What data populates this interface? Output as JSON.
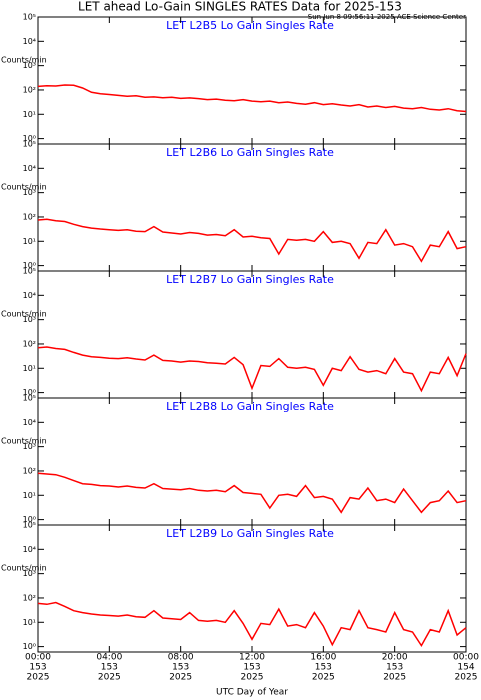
{
  "title": "LET ahead Lo-Gain SINGLES RATES Data for 2025-153",
  "timestamp": "Sun Jun  8 09:56:11 2025 ACE Science Center",
  "xlabel": "UTC Day of Year",
  "chart_data": [
    {
      "type": "line",
      "title": "LET L2B5 Lo Gain Singles Rate",
      "ylabel": "Counts/min",
      "color": "#ff0000",
      "log_y": true,
      "x": [
        0,
        0.5,
        1,
        1.5,
        2,
        2.5,
        3,
        3.5,
        4,
        4.5,
        5,
        5.5,
        6,
        6.5,
        7,
        7.5,
        8,
        8.5,
        9,
        9.5,
        10,
        10.5,
        11,
        11.5,
        12,
        12.5,
        13,
        13.5,
        14,
        14.5,
        15,
        15.5,
        16,
        16.5,
        17,
        17.5,
        18,
        18.5,
        19,
        19.5,
        20,
        20.5,
        21,
        21.5,
        22,
        22.5,
        23,
        23.5,
        24
      ],
      "values": [
        140,
        150,
        145,
        160,
        155,
        120,
        80,
        70,
        65,
        60,
        55,
        58,
        50,
        52,
        48,
        50,
        45,
        47,
        44,
        40,
        42,
        38,
        36,
        40,
        35,
        33,
        35,
        30,
        32,
        28,
        26,
        30,
        25,
        27,
        24,
        22,
        25,
        20,
        22,
        19,
        21,
        18,
        17,
        19,
        16,
        15,
        17,
        14,
        13
      ],
      "xlim": [
        0,
        24
      ],
      "xticks": [
        0,
        4,
        8,
        12,
        16,
        20,
        24
      ],
      "ylim": [
        0.6,
        100000
      ],
      "yticks": [
        {
          "value": 1,
          "label": "10⁰"
        },
        {
          "value": 10,
          "label": "10¹"
        },
        {
          "value": 100,
          "label": "10²"
        },
        {
          "value": 1000,
          "label": "10³"
        },
        {
          "value": 10000,
          "label": "10⁴"
        },
        {
          "value": 100000,
          "label": "10⁵"
        }
      ]
    },
    {
      "type": "line",
      "title": "LET L2B6 Lo Gain Singles Rate",
      "ylabel": "Counts/min",
      "color": "#ff0000",
      "log_y": true,
      "x": [
        0,
        0.5,
        1,
        1.5,
        2,
        2.5,
        3,
        3.5,
        4,
        4.5,
        5,
        5.5,
        6,
        6.5,
        7,
        7.5,
        8,
        8.5,
        9,
        9.5,
        10,
        10.5,
        11,
        11.5,
        12,
        12.5,
        13,
        13.5,
        14,
        14.5,
        15,
        15.5,
        16,
        16.5,
        17,
        17.5,
        18,
        18.5,
        19,
        19.5,
        20,
        20.5,
        21,
        21.5,
        22,
        22.5,
        23,
        23.5,
        24
      ],
      "values": [
        75,
        80,
        70,
        65,
        50,
        40,
        35,
        32,
        30,
        28,
        30,
        26,
        25,
        40,
        24,
        22,
        20,
        23,
        21,
        18,
        19,
        17,
        30,
        15,
        16,
        14,
        13,
        3,
        12,
        11,
        12,
        10,
        25,
        9,
        10,
        8,
        2,
        9,
        8,
        30,
        7,
        8,
        6,
        1.5,
        7,
        6,
        25,
        5,
        6
      ],
      "xlim": [
        0,
        24
      ],
      "xticks": [
        0,
        4,
        8,
        12,
        16,
        20,
        24
      ],
      "ylim": [
        0.6,
        100000
      ],
      "yticks": [
        {
          "value": 1,
          "label": "10⁰"
        },
        {
          "value": 10,
          "label": "10¹"
        },
        {
          "value": 100,
          "label": "10²"
        },
        {
          "value": 1000,
          "label": "10³"
        },
        {
          "value": 10000,
          "label": "10⁴"
        },
        {
          "value": 100000,
          "label": "10⁵"
        }
      ]
    },
    {
      "type": "line",
      "title": "LET L2B7 Lo Gain Singles Rate",
      "ylabel": "Counts/min",
      "color": "#ff0000",
      "log_y": true,
      "x": [
        0,
        0.5,
        1,
        1.5,
        2,
        2.5,
        3,
        3.5,
        4,
        4.5,
        5,
        5.5,
        6,
        6.5,
        7,
        7.5,
        8,
        8.5,
        9,
        9.5,
        10,
        10.5,
        11,
        11.5,
        12,
        12.5,
        13,
        13.5,
        14,
        14.5,
        15,
        15.5,
        16,
        16.5,
        17,
        17.5,
        18,
        18.5,
        19,
        19.5,
        20,
        20.5,
        21,
        21.5,
        22,
        22.5,
        23,
        23.5,
        24
      ],
      "values": [
        70,
        75,
        65,
        60,
        45,
        35,
        30,
        28,
        26,
        25,
        27,
        24,
        22,
        35,
        21,
        20,
        18,
        20,
        19,
        17,
        16,
        15,
        28,
        14,
        1.5,
        13,
        12,
        25,
        11,
        10,
        11,
        9,
        2,
        10,
        8,
        30,
        9,
        7,
        8,
        6,
        25,
        7,
        6,
        1.2,
        7,
        6,
        28,
        5,
        40
      ],
      "xlim": [
        0,
        24
      ],
      "xticks": [
        0,
        4,
        8,
        12,
        16,
        20,
        24
      ],
      "ylim": [
        0.6,
        100000
      ],
      "yticks": [
        {
          "value": 1,
          "label": "10⁰"
        },
        {
          "value": 10,
          "label": "10¹"
        },
        {
          "value": 100,
          "label": "10²"
        },
        {
          "value": 1000,
          "label": "10³"
        },
        {
          "value": 10000,
          "label": "10⁴"
        },
        {
          "value": 100000,
          "label": "10⁵"
        }
      ]
    },
    {
      "type": "line",
      "title": "LET L2B8 Lo Gain Singles Rate",
      "ylabel": "Counts/min",
      "color": "#ff0000",
      "log_y": true,
      "x": [
        0,
        0.5,
        1,
        1.5,
        2,
        2.5,
        3,
        3.5,
        4,
        4.5,
        5,
        5.5,
        6,
        6.5,
        7,
        7.5,
        8,
        8.5,
        9,
        9.5,
        10,
        10.5,
        11,
        11.5,
        12,
        12.5,
        13,
        13.5,
        14,
        14.5,
        15,
        15.5,
        16,
        16.5,
        17,
        17.5,
        18,
        18.5,
        19,
        19.5,
        20,
        20.5,
        21,
        21.5,
        22,
        22.5,
        23,
        23.5,
        24
      ],
      "values": [
        80,
        75,
        70,
        55,
        40,
        30,
        28,
        25,
        24,
        22,
        24,
        21,
        20,
        30,
        19,
        18,
        17,
        19,
        16,
        15,
        16,
        14,
        25,
        13,
        12,
        11,
        3,
        10,
        11,
        9,
        25,
        8,
        9,
        7,
        2,
        8,
        7,
        20,
        6,
        7,
        5,
        18,
        6,
        2,
        5,
        6,
        15,
        5,
        6
      ],
      "xlim": [
        0,
        24
      ],
      "xticks": [
        0,
        4,
        8,
        12,
        16,
        20,
        24
      ],
      "ylim": [
        0.6,
        100000
      ],
      "yticks": [
        {
          "value": 1,
          "label": "10⁰"
        },
        {
          "value": 10,
          "label": "10¹"
        },
        {
          "value": 100,
          "label": "10²"
        },
        {
          "value": 1000,
          "label": "10³"
        },
        {
          "value": 10000,
          "label": "10⁴"
        },
        {
          "value": 100000,
          "label": "10⁵"
        }
      ]
    },
    {
      "type": "line",
      "title": "LET L2B9 Lo Gain Singles Rate",
      "ylabel": "Counts/min",
      "color": "#ff0000",
      "log_y": true,
      "x": [
        0,
        0.5,
        1,
        1.5,
        2,
        2.5,
        3,
        3.5,
        4,
        4.5,
        5,
        5.5,
        6,
        6.5,
        7,
        7.5,
        8,
        8.5,
        9,
        9.5,
        10,
        10.5,
        11,
        11.5,
        12,
        12.5,
        13,
        13.5,
        14,
        14.5,
        15,
        15.5,
        16,
        16.5,
        17,
        17.5,
        18,
        18.5,
        19,
        19.5,
        20,
        20.5,
        21,
        21.5,
        22,
        22.5,
        23,
        23.5,
        24
      ],
      "values": [
        60,
        55,
        65,
        45,
        30,
        25,
        22,
        20,
        19,
        18,
        20,
        17,
        16,
        30,
        15,
        14,
        13,
        25,
        12,
        11,
        12,
        10,
        30,
        9,
        2,
        9,
        8,
        35,
        7,
        8,
        6,
        25,
        7,
        1.2,
        6,
        5,
        30,
        6,
        5,
        4,
        25,
        5,
        4,
        1.1,
        5,
        4,
        30,
        3,
        6
      ],
      "xlim": [
        0,
        24
      ],
      "xticks": [
        {
          "value": 0,
          "label": "00:00"
        },
        {
          "value": 4,
          "label": "04:00"
        },
        {
          "value": 8,
          "label": "08:00"
        },
        {
          "value": 12,
          "label": "12:00"
        },
        {
          "value": 16,
          "label": "16:00"
        },
        {
          "value": 20,
          "label": "20:00"
        },
        {
          "value": 24,
          "label": "00:00"
        }
      ],
      "xtick_days": [
        "153",
        "153",
        "153",
        "153",
        "153",
        "153",
        "154"
      ],
      "xtick_years": [
        "2025",
        "2025",
        "2025",
        "2025",
        "2025",
        "2025",
        "2025"
      ],
      "ylim": [
        0.6,
        100000
      ],
      "yticks": [
        {
          "value": 1,
          "label": "10⁰"
        },
        {
          "value": 10,
          "label": "10¹"
        },
        {
          "value": 100,
          "label": "10²"
        },
        {
          "value": 1000,
          "label": "10³"
        },
        {
          "value": 10000,
          "label": "10⁴"
        },
        {
          "value": 100000,
          "label": "10⁵"
        }
      ]
    }
  ]
}
